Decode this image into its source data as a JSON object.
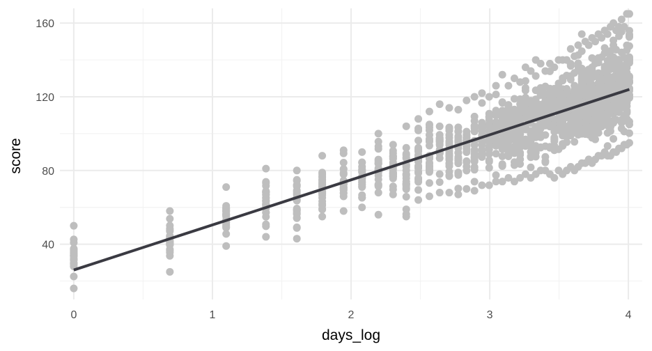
{
  "colors": {
    "background": "#ffffff",
    "grid_major": "#ebebeb",
    "grid_minor": "#f3f3f3",
    "points": "#bebebe",
    "trend_line": "#3a3a42",
    "tick_text": "#4d4d4d",
    "axis_title_text": "#000000"
  },
  "chart_data": {
    "type": "scatter",
    "title": "",
    "xlabel": "days_log",
    "ylabel": "score",
    "xlim": [
      -0.1,
      4.1
    ],
    "ylim": [
      10,
      168
    ],
    "xticks": [
      0,
      1,
      2,
      3,
      4
    ],
    "yticks": [
      40,
      80,
      120,
      160
    ],
    "x_tick_labels": [
      "0",
      "1",
      "2",
      "3",
      "4"
    ],
    "y_tick_labels": [
      "40",
      "80",
      "120",
      "160"
    ],
    "grid": true,
    "legend": "none",
    "x_levels": [
      0,
      0.693,
      1.099,
      1.386,
      1.609,
      1.792,
      1.946,
      2.079,
      2.197,
      2.303,
      2.398,
      2.485,
      2.565,
      2.639,
      2.708,
      2.773,
      2.833,
      2.89,
      2.944,
      2.996,
      3.045,
      3.091,
      3.135,
      3.178,
      3.219,
      3.258,
      3.296,
      3.332,
      3.367,
      3.401,
      3.434,
      3.466,
      3.497,
      3.526,
      3.555,
      3.584,
      3.611,
      3.638,
      3.664,
      3.689,
      3.714,
      3.738,
      3.761,
      3.784,
      3.807,
      3.829,
      3.85,
      3.871,
      3.892,
      3.912,
      3.932,
      3.951,
      3.97,
      3.989,
      4.007
    ],
    "y_ranges": [
      [
        16,
        50
      ],
      [
        25,
        58
      ],
      [
        39,
        71
      ],
      [
        44,
        81
      ],
      [
        43,
        80
      ],
      [
        55,
        88
      ],
      [
        58,
        91
      ],
      [
        60,
        90
      ],
      [
        56,
        100
      ],
      [
        67,
        94
      ],
      [
        55,
        104
      ],
      [
        64,
        108
      ],
      [
        66,
        112
      ],
      [
        68,
        116
      ],
      [
        68,
        114
      ],
      [
        67,
        113
      ],
      [
        70,
        118
      ],
      [
        69,
        120
      ],
      [
        72,
        122
      ],
      [
        72,
        120
      ],
      [
        74,
        126
      ],
      [
        74,
        132
      ],
      [
        76,
        126
      ],
      [
        74,
        130
      ],
      [
        76,
        128
      ],
      [
        78,
        136
      ],
      [
        76,
        134
      ],
      [
        78,
        140
      ],
      [
        80,
        138
      ],
      [
        80,
        134
      ],
      [
        78,
        138
      ],
      [
        76,
        136
      ],
      [
        80,
        140
      ],
      [
        78,
        140
      ],
      [
        80,
        140
      ],
      [
        82,
        146
      ],
      [
        80,
        142
      ],
      [
        82,
        148
      ],
      [
        84,
        154
      ],
      [
        84,
        150
      ],
      [
        86,
        148
      ],
      [
        84,
        152
      ],
      [
        86,
        150
      ],
      [
        88,
        154
      ],
      [
        88,
        152
      ],
      [
        90,
        156
      ],
      [
        88,
        154
      ],
      [
        88,
        158
      ],
      [
        90,
        160
      ],
      [
        90,
        156
      ],
      [
        92,
        158
      ],
      [
        92,
        162
      ],
      [
        94,
        158
      ],
      [
        94,
        165
      ],
      [
        95,
        165
      ]
    ],
    "trend_line": {
      "x": [
        0,
        4.007
      ],
      "y": [
        26,
        124
      ]
    }
  }
}
